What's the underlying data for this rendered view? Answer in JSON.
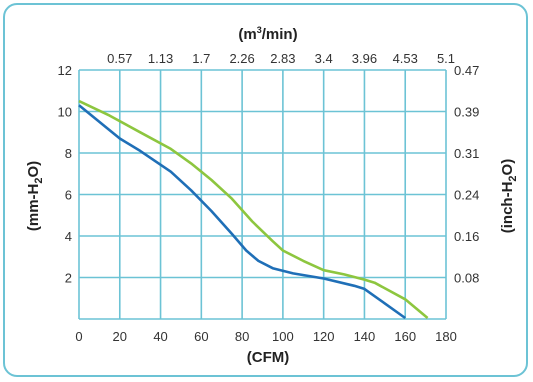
{
  "chart_data": {
    "type": "line",
    "title": "",
    "xlabel": "(CFM)",
    "x2label_main": "(m",
    "x2label_sup": "3",
    "x2label_tail": "/min)",
    "ylabel_left_main": "(mm-H",
    "ylabel_left_sub": "2",
    "ylabel_left_tail": "O)",
    "ylabel_right_main": "(inch-H",
    "ylabel_right_sub": "2",
    "ylabel_right_tail": "O)",
    "xlim": [
      0,
      180
    ],
    "ylim": [
      0,
      12
    ],
    "x_ticks": [
      "0",
      "20",
      "40",
      "60",
      "80",
      "100",
      "120",
      "140",
      "160",
      "180"
    ],
    "y_ticks": [
      "2",
      "4",
      "6",
      "8",
      "10",
      "12"
    ],
    "x2_ticks": [
      "0.57",
      "1.13",
      "1.7",
      "2.26",
      "2.83",
      "3.4",
      "3.96",
      "4.53",
      "5.1"
    ],
    "y2_ticks": [
      "0.08",
      "0.16",
      "0.24",
      "0.31",
      "0.39",
      "0.47"
    ],
    "grid": true,
    "colors": {
      "frame": "#6cc3d5",
      "grid": "#6cc3d5",
      "blue": "#1f6fb7",
      "green": "#8dc63f"
    },
    "series": [
      {
        "color": "#1f6fb7",
        "x": [
          0,
          10,
          20,
          30,
          45,
          55,
          65,
          75,
          82,
          88,
          95,
          105,
          120,
          135,
          140,
          150,
          160
        ],
        "y": [
          10.3,
          9.5,
          8.7,
          8.1,
          7.1,
          6.2,
          5.2,
          4.1,
          3.3,
          2.8,
          2.45,
          2.2,
          1.95,
          1.6,
          1.45,
          0.75,
          0.05
        ]
      },
      {
        "color": "#8dc63f",
        "x": [
          0,
          15,
          30,
          45,
          55,
          65,
          75,
          85,
          95,
          100,
          110,
          120,
          130,
          140,
          145,
          160,
          171
        ],
        "y": [
          10.5,
          9.8,
          9.0,
          8.2,
          7.5,
          6.7,
          5.8,
          4.7,
          3.75,
          3.3,
          2.8,
          2.35,
          2.15,
          1.9,
          1.75,
          0.95,
          0.05
        ]
      }
    ]
  }
}
